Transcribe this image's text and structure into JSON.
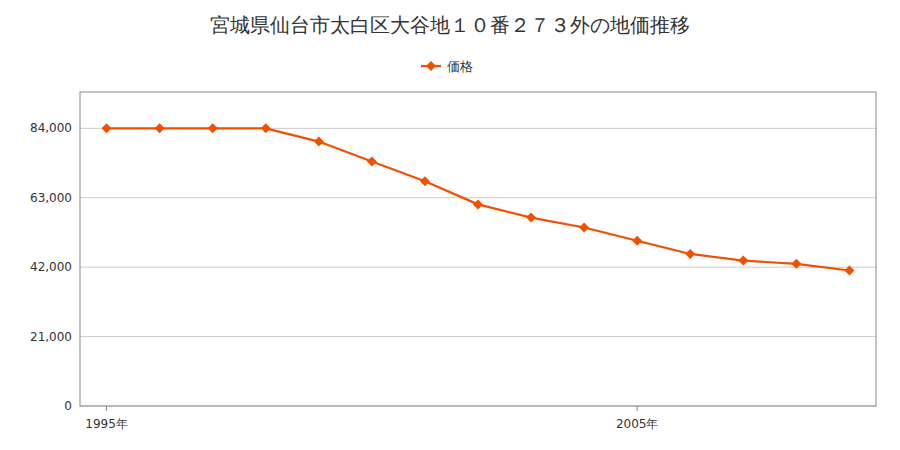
{
  "chart_data": {
    "type": "line",
    "title": "宮城県仙台市太白区大谷地１０番２７３外の地価推移",
    "x": [
      1995,
      1996,
      1997,
      1998,
      1999,
      2000,
      2001,
      2002,
      2003,
      2004,
      2005,
      2006,
      2007,
      2008,
      2009
    ],
    "series": [
      {
        "name": "価格",
        "color": "#f05000",
        "marker": "diamond",
        "values": [
          84000,
          84000,
          84000,
          84000,
          80000,
          74000,
          68000,
          61000,
          57000,
          54000,
          50000,
          46000,
          44000,
          43000,
          41000
        ]
      }
    ],
    "xlim": [
      1994.5,
      2009.5
    ],
    "xticks": [
      {
        "value": 1995,
        "label": "1995年"
      },
      {
        "value": 2005,
        "label": "2005年"
      }
    ],
    "ylim": [
      0,
      95000
    ],
    "yticks": [
      0,
      {
        "value": 21000,
        "label": "21,000"
      },
      {
        "value": 42000,
        "label": "42,000"
      },
      {
        "value": 63000,
        "label": "63,000"
      },
      {
        "value": 84000,
        "label": "84,000"
      }
    ],
    "grid": true,
    "legend": "top"
  }
}
